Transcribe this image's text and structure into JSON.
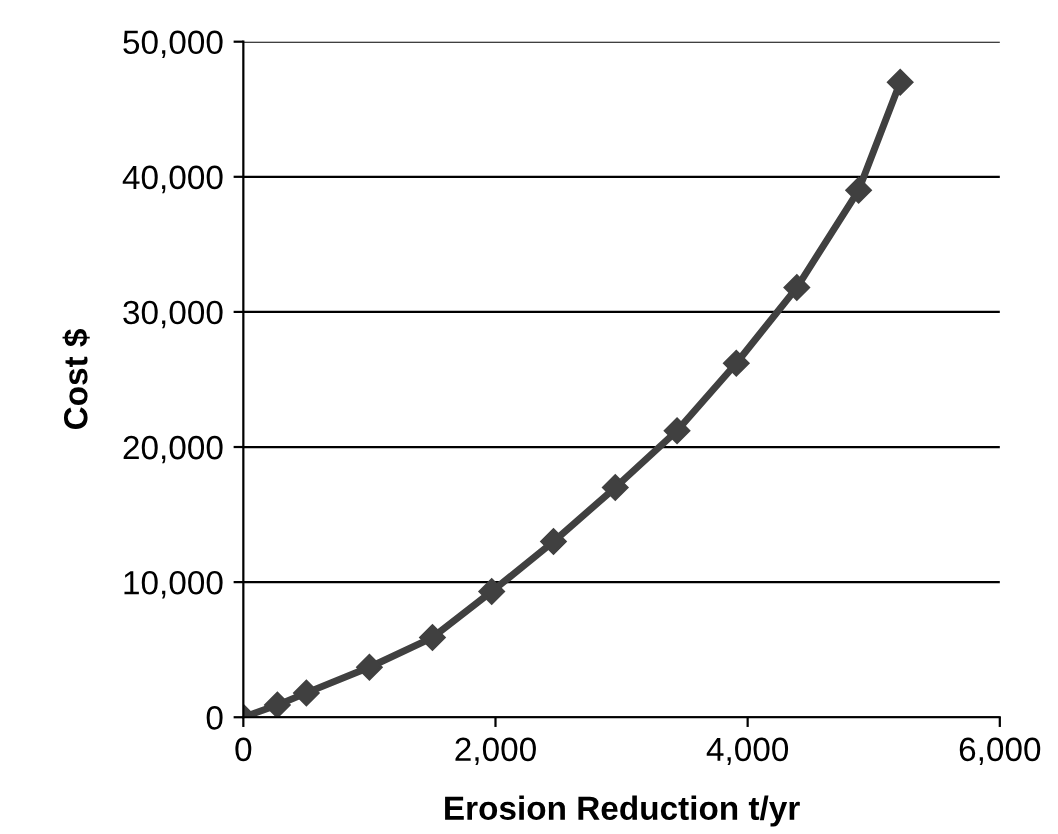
{
  "chart_data": {
    "type": "line",
    "xlabel": "Erosion Reduction t/yr",
    "ylabel": "Cost $",
    "x": [
      0,
      270,
      500,
      1000,
      1500,
      1970,
      2460,
      2950,
      3440,
      3910,
      4390,
      4880,
      5210
    ],
    "series": [
      {
        "color": "#404040",
        "values": [
          0,
          900,
          1800,
          3700,
          5900,
          9300,
          13000,
          17000,
          21200,
          26200,
          31800,
          39000,
          47000
        ]
      }
    ],
    "xlim": [
      0,
      6000
    ],
    "xticks": [
      {
        "value": 0,
        "label": "0"
      },
      {
        "value": 2000,
        "label": "2,000"
      },
      {
        "value": 4000,
        "label": "4,000"
      },
      {
        "value": 6000,
        "label": "6,000"
      }
    ],
    "ylim": [
      0,
      50000
    ],
    "yticks": [
      {
        "value": 0,
        "label": "0"
      },
      {
        "value": 10000,
        "label": "10,000"
      },
      {
        "value": 20000,
        "label": "20,000"
      },
      {
        "value": 30000,
        "label": "30,000"
      },
      {
        "value": 40000,
        "label": "40,000"
      },
      {
        "value": 50000,
        "label": "50,000"
      }
    ],
    "grid": "y",
    "marker": "diamond",
    "line_style": "solid",
    "legend": false
  }
}
